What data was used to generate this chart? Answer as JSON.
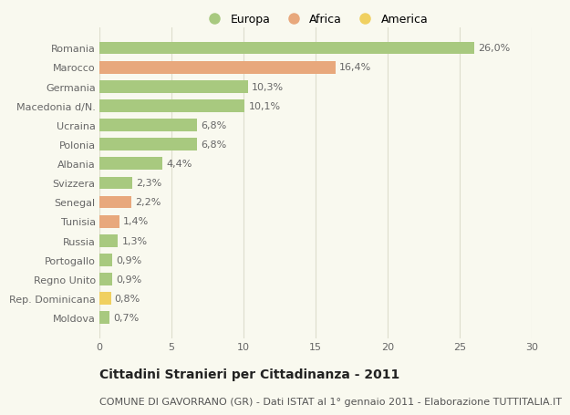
{
  "categories": [
    "Romania",
    "Marocco",
    "Germania",
    "Macedonia d/N.",
    "Ucraina",
    "Polonia",
    "Albania",
    "Svizzera",
    "Senegal",
    "Tunisia",
    "Russia",
    "Portogallo",
    "Regno Unito",
    "Rep. Dominicana",
    "Moldova"
  ],
  "values": [
    26.0,
    16.4,
    10.3,
    10.1,
    6.8,
    6.8,
    4.4,
    2.3,
    2.2,
    1.4,
    1.3,
    0.9,
    0.9,
    0.8,
    0.7
  ],
  "labels": [
    "26,0%",
    "16,4%",
    "10,3%",
    "10,1%",
    "6,8%",
    "6,8%",
    "4,4%",
    "2,3%",
    "2,2%",
    "1,4%",
    "1,3%",
    "0,9%",
    "0,9%",
    "0,8%",
    "0,7%"
  ],
  "colors": [
    "#a8c97f",
    "#e8a87c",
    "#a8c97f",
    "#a8c97f",
    "#a8c97f",
    "#a8c97f",
    "#a8c97f",
    "#a8c97f",
    "#e8a87c",
    "#e8a87c",
    "#a8c97f",
    "#a8c97f",
    "#a8c97f",
    "#f0d060",
    "#a8c97f"
  ],
  "legend": [
    {
      "label": "Europa",
      "color": "#a8c97f"
    },
    {
      "label": "Africa",
      "color": "#e8a87c"
    },
    {
      "label": "America",
      "color": "#f0d060"
    }
  ],
  "xlim": [
    0,
    30
  ],
  "xticks": [
    0,
    5,
    10,
    15,
    20,
    25,
    30
  ],
  "title": "Cittadini Stranieri per Cittadinanza - 2011",
  "subtitle": "COMUNE DI GAVORRANO (GR) - Dati ISTAT al 1° gennaio 2011 - Elaborazione TUTTITALIA.IT",
  "background_color": "#f9f9ef",
  "grid_color": "#ddddcc",
  "bar_height": 0.65,
  "title_fontsize": 10,
  "subtitle_fontsize": 8,
  "label_fontsize": 8,
  "tick_fontsize": 8,
  "legend_fontsize": 9
}
